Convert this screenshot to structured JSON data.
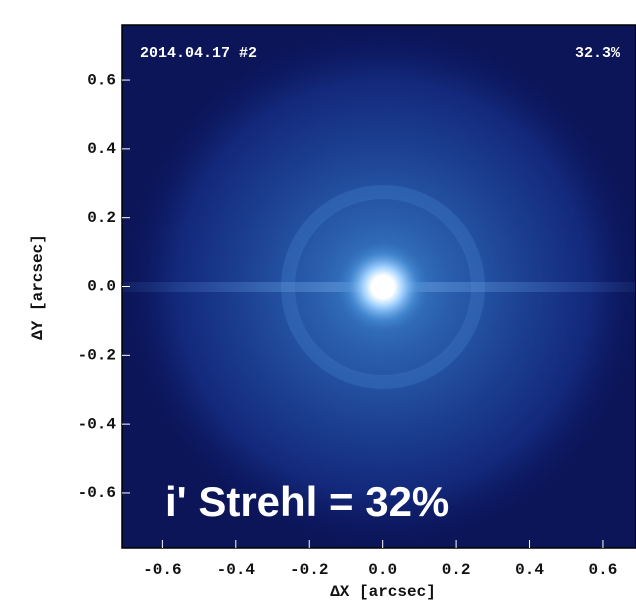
{
  "chart_data": {
    "type": "image",
    "annotations": [
      "2014.04.17 #2",
      "32.3%",
      "i' Strehl = 32%"
    ],
    "xlabel": "ΔX [arcsec]",
    "ylabel": "ΔY [arcsec]",
    "xlim": [
      -0.71,
      0.69
    ],
    "ylim": [
      -0.76,
      0.76
    ],
    "xticks": [
      -0.6,
      -0.4,
      -0.2,
      {
        "value": 0,
        "label": "0.0"
      },
      0.2,
      0.4,
      0.6
    ],
    "yticks": [
      -0.6,
      -0.4,
      -0.2,
      {
        "value": 0,
        "label": "0.0"
      },
      0.2,
      0.4,
      0.6
    ]
  }
}
